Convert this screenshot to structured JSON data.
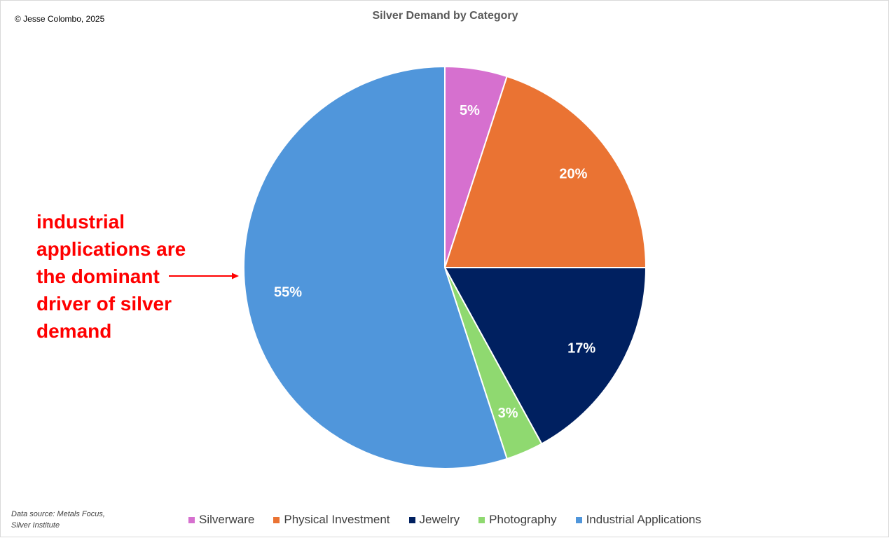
{
  "header": {
    "copyright": "© Jesse Colombo, 2025"
  },
  "annotation": {
    "text": "industrial applications are the dominant driver of silver demand",
    "color": "#ff0000"
  },
  "footer": {
    "source": "Data source: Metals Focus, Silver Institute"
  },
  "chart_data": {
    "type": "pie",
    "title": "Silver Demand by Category",
    "legend_position": "bottom",
    "start_angle_deg": 0,
    "direction": "clockwise",
    "slices": [
      {
        "name": "Silverware",
        "value": 5,
        "label": "5%",
        "color": "#d670cf"
      },
      {
        "name": "Physical Investment",
        "value": 20,
        "label": "20%",
        "color": "#ea7333"
      },
      {
        "name": "Jewelry",
        "value": 17,
        "label": "17%",
        "color": "#002060"
      },
      {
        "name": "Photography",
        "value": 3,
        "label": "3%",
        "color": "#8fd970"
      },
      {
        "name": "Industrial Applications",
        "value": 55,
        "label": "55%",
        "color": "#5096db"
      }
    ]
  }
}
